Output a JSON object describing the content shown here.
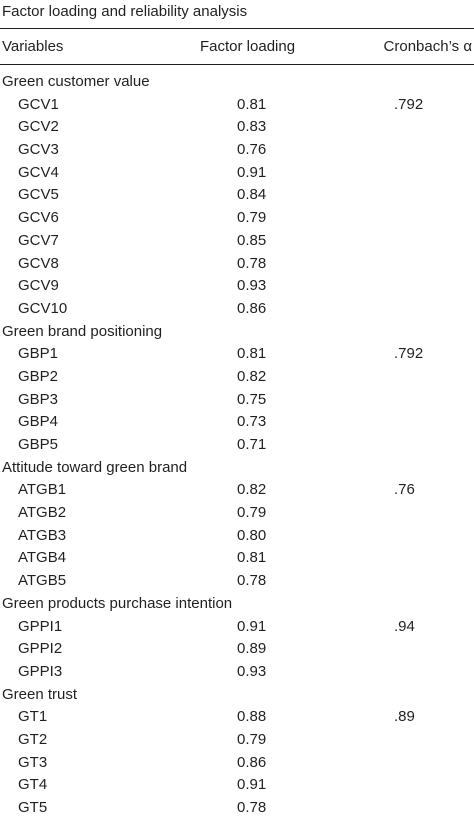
{
  "title": "Factor loading and reliability analysis",
  "header": [
    "Variables",
    "Factor loading",
    "Cronbach’s α"
  ],
  "groups": [
    {
      "label": "Green customer value",
      "rows": [
        {
          "variable": "GCV1",
          "loading": "0.81",
          "alpha": ".792"
        },
        {
          "variable": "GCV2",
          "loading": "0.83"
        },
        {
          "variable": "GCV3",
          "loading": "0.76"
        },
        {
          "variable": "GCV4",
          "loading": "0.91"
        },
        {
          "variable": "GCV5",
          "loading": "0.84"
        },
        {
          "variable": "GCV6",
          "loading": "0.79"
        },
        {
          "variable": "GCV7",
          "loading": "0.85"
        },
        {
          "variable": "GCV8",
          "loading": "0.78"
        },
        {
          "variable": "GCV9",
          "loading": "0.93"
        },
        {
          "variable": "GCV10",
          "loading": "0.86"
        }
      ]
    },
    {
      "label": "Green brand positioning",
      "rows": [
        {
          "variable": "GBP1",
          "loading": "0.81",
          "alpha": ".792"
        },
        {
          "variable": "GBP2",
          "loading": "0.82"
        },
        {
          "variable": "GBP3",
          "loading": "0.75"
        },
        {
          "variable": "GBP4",
          "loading": "0.73"
        },
        {
          "variable": "GBP5",
          "loading": "0.71"
        }
      ]
    },
    {
      "label": "Attitude toward green brand",
      "rows": [
        {
          "variable": "ATGB1",
          "loading": "0.82",
          "alpha": ".76"
        },
        {
          "variable": "ATGB2",
          "loading": "0.79"
        },
        {
          "variable": "ATGB3",
          "loading": "0.80"
        },
        {
          "variable": "ATGB4",
          "loading": "0.81"
        },
        {
          "variable": "ATGB5",
          "loading": "0.78"
        }
      ]
    },
    {
      "label": "Green products purchase intention",
      "rows": [
        {
          "variable": "GPPI1",
          "loading": "0.91",
          "alpha": ".94"
        },
        {
          "variable": "GPPI2",
          "loading": "0.89"
        },
        {
          "variable": "GPPI3",
          "loading": "0.93"
        }
      ]
    },
    {
      "label": "Green trust",
      "rows": [
        {
          "variable": "GT1",
          "loading": "0.88",
          "alpha": ".89"
        },
        {
          "variable": "GT2",
          "loading": "0.79"
        },
        {
          "variable": "GT3",
          "loading": "0.86"
        },
        {
          "variable": "GT4",
          "loading": "0.91"
        },
        {
          "variable": "GT5",
          "loading": "0.78"
        }
      ]
    }
  ]
}
